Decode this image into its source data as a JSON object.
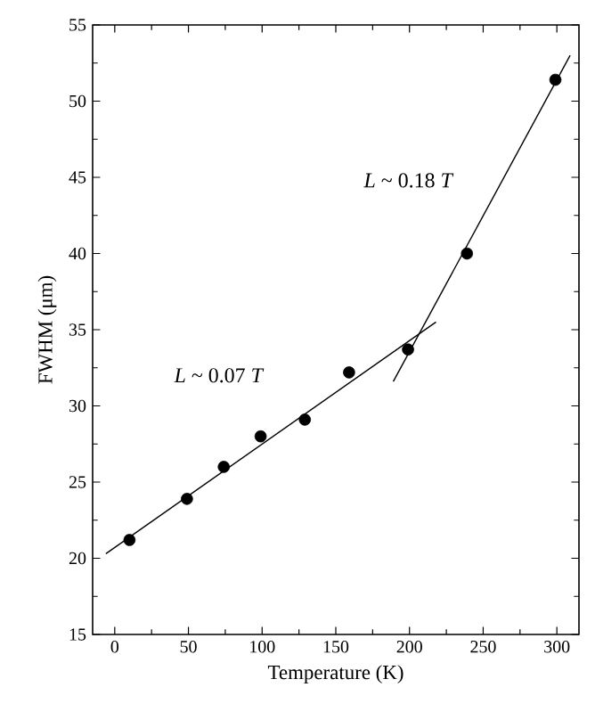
{
  "chart_data": {
    "type": "scatter",
    "xlabel": "Temperature (K)",
    "ylabel": "FWHM (μm)",
    "xlim": [
      -15,
      315
    ],
    "ylim": [
      15,
      55
    ],
    "xticks": [
      0,
      50,
      100,
      150,
      200,
      250,
      300
    ],
    "yticks": [
      15,
      20,
      25,
      30,
      35,
      40,
      45,
      50,
      55
    ],
    "series": [
      {
        "color": "#000000",
        "marker": "circle",
        "x": [
          10,
          49,
          74,
          99,
          129,
          159,
          199,
          239,
          299
        ],
        "values": [
          21.2,
          23.9,
          26.0,
          28.0,
          29.1,
          32.2,
          33.7,
          40.0,
          51.4
        ]
      },
      {
        "type": "line",
        "color": "#000000",
        "marker": "none",
        "line_style": "solid",
        "x": [
          -6,
          218
        ],
        "values": [
          20.3,
          35.5
        ]
      },
      {
        "type": "line",
        "color": "#000000",
        "marker": "none",
        "line_style": "solid",
        "x": [
          189,
          309
        ],
        "values": [
          31.6,
          53.0
        ]
      }
    ],
    "annotations": [
      "*L* ~ 0.18 *T*",
      "*L* ~ 0.07 *T*"
    ]
  }
}
